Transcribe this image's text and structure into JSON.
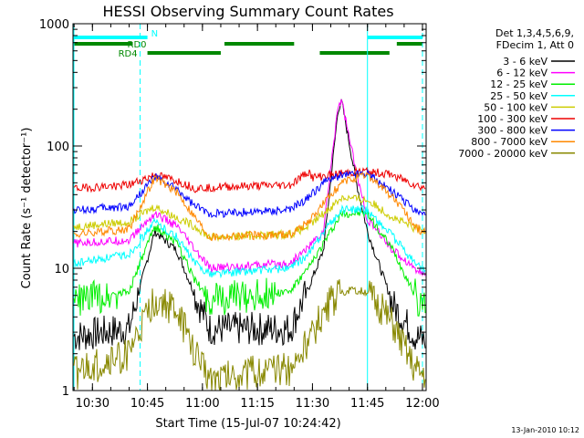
{
  "chart_data": {
    "type": "line",
    "title": "HESSI Observing Summary Count Rates",
    "xlabel": "Start Time (15-Jul-07 10:24:42)",
    "ylabel": "Count Rate (s⁻¹ detector⁻¹)",
    "y_scale": "log",
    "ylim": [
      1,
      1000
    ],
    "y_ticks": [
      {
        "value": 1,
        "label": "1"
      },
      {
        "value": 10,
        "label": "10"
      },
      {
        "value": 100,
        "label": "100"
      },
      {
        "value": 1000,
        "label": "1000"
      }
    ],
    "xlim": [
      "10:24:42",
      "12:01:00"
    ],
    "x_ticks": [
      "10:30",
      "10:45",
      "11:00",
      "11:15",
      "11:30",
      "11:45",
      "12:00"
    ],
    "grid": false,
    "legend_position": "right",
    "legend_header": [
      "Det 1,3,4,5,6,9,",
      "FDecim 1, Att 0"
    ],
    "series": [
      {
        "name": "3 - 6 keV",
        "color": "#000000",
        "points": [
          [
            "10:26",
            2.8
          ],
          [
            "10:40",
            3.2
          ],
          [
            "10:47",
            20
          ],
          [
            "10:53",
            14
          ],
          [
            "10:58",
            6
          ],
          [
            "11:02",
            3.2
          ],
          [
            "11:24",
            3.2
          ],
          [
            "11:29",
            7
          ],
          [
            "11:33",
            14
          ],
          [
            "11:37",
            200
          ],
          [
            "11:38",
            230
          ],
          [
            "11:42",
            50
          ],
          [
            "11:45",
            20
          ],
          [
            "11:52",
            5
          ],
          [
            "11:58",
            2.8
          ],
          [
            "12:00",
            2.6
          ]
        ]
      },
      {
        "name": "6 - 12 keV",
        "color": "#ff00ff",
        "points": [
          [
            "10:26",
            16
          ],
          [
            "10:40",
            17
          ],
          [
            "10:47",
            28
          ],
          [
            "10:53",
            22
          ],
          [
            "10:58",
            14
          ],
          [
            "11:02",
            10
          ],
          [
            "11:24",
            11
          ],
          [
            "11:29",
            15
          ],
          [
            "11:33",
            20
          ],
          [
            "11:37",
            220
          ],
          [
            "11:38",
            235
          ],
          [
            "11:42",
            60
          ],
          [
            "11:45",
            25
          ],
          [
            "11:52",
            14
          ],
          [
            "11:58",
            10
          ],
          [
            "12:00",
            9
          ]
        ]
      },
      {
        "name": "12 - 25 keV",
        "color": "#00ee00",
        "points": [
          [
            "10:26",
            5.5
          ],
          [
            "10:40",
            6.5
          ],
          [
            "10:47",
            22
          ],
          [
            "10:53",
            16
          ],
          [
            "10:58",
            8
          ],
          [
            "11:02",
            5.5
          ],
          [
            "11:24",
            6.5
          ],
          [
            "11:29",
            10
          ],
          [
            "11:33",
            16
          ],
          [
            "11:38",
            28
          ],
          [
            "11:45",
            28
          ],
          [
            "11:52",
            14
          ],
          [
            "11:58",
            6
          ],
          [
            "12:00",
            5
          ]
        ]
      },
      {
        "name": "25 - 50 keV",
        "color": "#00ffff",
        "points": [
          [
            "10:26",
            11
          ],
          [
            "10:40",
            13
          ],
          [
            "10:47",
            24
          ],
          [
            "10:53",
            18
          ],
          [
            "10:58",
            11
          ],
          [
            "11:02",
            9
          ],
          [
            "11:24",
            10
          ],
          [
            "11:29",
            13
          ],
          [
            "11:33",
            20
          ],
          [
            "11:38",
            30
          ],
          [
            "11:45",
            30
          ],
          [
            "11:52",
            18
          ],
          [
            "11:58",
            11
          ],
          [
            "12:00",
            10
          ]
        ]
      },
      {
        "name": "50 - 100 keV",
        "color": "#cccc00",
        "points": [
          [
            "10:26",
            22
          ],
          [
            "10:40",
            24
          ],
          [
            "10:47",
            32
          ],
          [
            "10:53",
            26
          ],
          [
            "10:58",
            22
          ],
          [
            "11:02",
            18
          ],
          [
            "11:24",
            19
          ],
          [
            "11:29",
            22
          ],
          [
            "11:33",
            28
          ],
          [
            "11:38",
            38
          ],
          [
            "11:45",
            36
          ],
          [
            "11:52",
            26
          ],
          [
            "11:58",
            21
          ],
          [
            "12:00",
            20
          ]
        ]
      },
      {
        "name": "100 - 300 keV",
        "color": "#ee0000",
        "points": [
          [
            "10:26",
            45
          ],
          [
            "10:40",
            48
          ],
          [
            "10:47",
            58
          ],
          [
            "10:53",
            52
          ],
          [
            "10:58",
            45
          ],
          [
            "11:02",
            46
          ],
          [
            "11:24",
            48
          ],
          [
            "11:29",
            62
          ],
          [
            "11:30",
            55
          ],
          [
            "11:38",
            60
          ],
          [
            "11:45",
            62
          ],
          [
            "11:52",
            58
          ],
          [
            "11:58",
            48
          ],
          [
            "12:00",
            46
          ]
        ]
      },
      {
        "name": "300 - 800 keV",
        "color": "#0000ff",
        "points": [
          [
            "10:26",
            30
          ],
          [
            "10:40",
            32
          ],
          [
            "10:47",
            56
          ],
          [
            "10:53",
            44
          ],
          [
            "10:58",
            32
          ],
          [
            "11:02",
            28
          ],
          [
            "11:24",
            30
          ],
          [
            "11:29",
            38
          ],
          [
            "11:33",
            50
          ],
          [
            "11:38",
            58
          ],
          [
            "11:45",
            60
          ],
          [
            "11:52",
            42
          ],
          [
            "11:58",
            30
          ],
          [
            "12:00",
            28
          ]
        ]
      },
      {
        "name": "800 - 7000 keV",
        "color": "#ff8800",
        "points": [
          [
            "10:26",
            19
          ],
          [
            "10:40",
            21
          ],
          [
            "10:47",
            55
          ],
          [
            "10:53",
            42
          ],
          [
            "10:58",
            26
          ],
          [
            "11:02",
            18
          ],
          [
            "11:24",
            19
          ],
          [
            "11:29",
            24
          ],
          [
            "11:33",
            34
          ],
          [
            "11:38",
            50
          ],
          [
            "11:45",
            58
          ],
          [
            "11:52",
            38
          ],
          [
            "11:58",
            22
          ],
          [
            "12:00",
            20
          ]
        ]
      },
      {
        "name": "7000 - 20000 keV",
        "color": "#888800",
        "points": [
          [
            "10:26",
            1.4
          ],
          [
            "10:40",
            2.0
          ],
          [
            "10:47",
            5.5
          ],
          [
            "10:53",
            4.5
          ],
          [
            "10:58",
            2.0
          ],
          [
            "11:02",
            1.3
          ],
          [
            "11:24",
            1.5
          ],
          [
            "11:29",
            2.5
          ],
          [
            "11:33",
            4.5
          ],
          [
            "11:38",
            6.5
          ],
          [
            "11:45",
            6.5
          ],
          [
            "11:52",
            3.5
          ],
          [
            "11:58",
            1.5
          ],
          [
            "12:00",
            1.4
          ]
        ]
      }
    ],
    "status_bars": [
      {
        "label": "N",
        "color": "#00ffff",
        "segments": [
          [
            "10:24:42",
            "10:45"
          ],
          [
            "11:45",
            "12:00"
          ]
        ]
      },
      {
        "label": "RD0",
        "color": "#008800",
        "segments": [
          [
            "10:24:42",
            "10:41"
          ],
          [
            "11:06",
            "11:25"
          ],
          [
            "11:53",
            "12:00"
          ]
        ]
      },
      {
        "label": "RD4",
        "color": "#008800",
        "segments": [
          [
            "10:45",
            "11:05"
          ],
          [
            "11:32",
            "11:51"
          ]
        ]
      }
    ],
    "vertical_lines": [
      {
        "time": "10:24:42",
        "style": "solid",
        "color": "#00ffff"
      },
      {
        "time": "10:43",
        "style": "dashed",
        "color": "#00ffff"
      },
      {
        "time": "11:45",
        "style": "solid",
        "color": "#00ffff"
      },
      {
        "time": "12:00",
        "style": "dashed",
        "color": "#00ffff"
      }
    ]
  },
  "footer": {
    "timestamp": "13-Jan-2010 10:12"
  }
}
